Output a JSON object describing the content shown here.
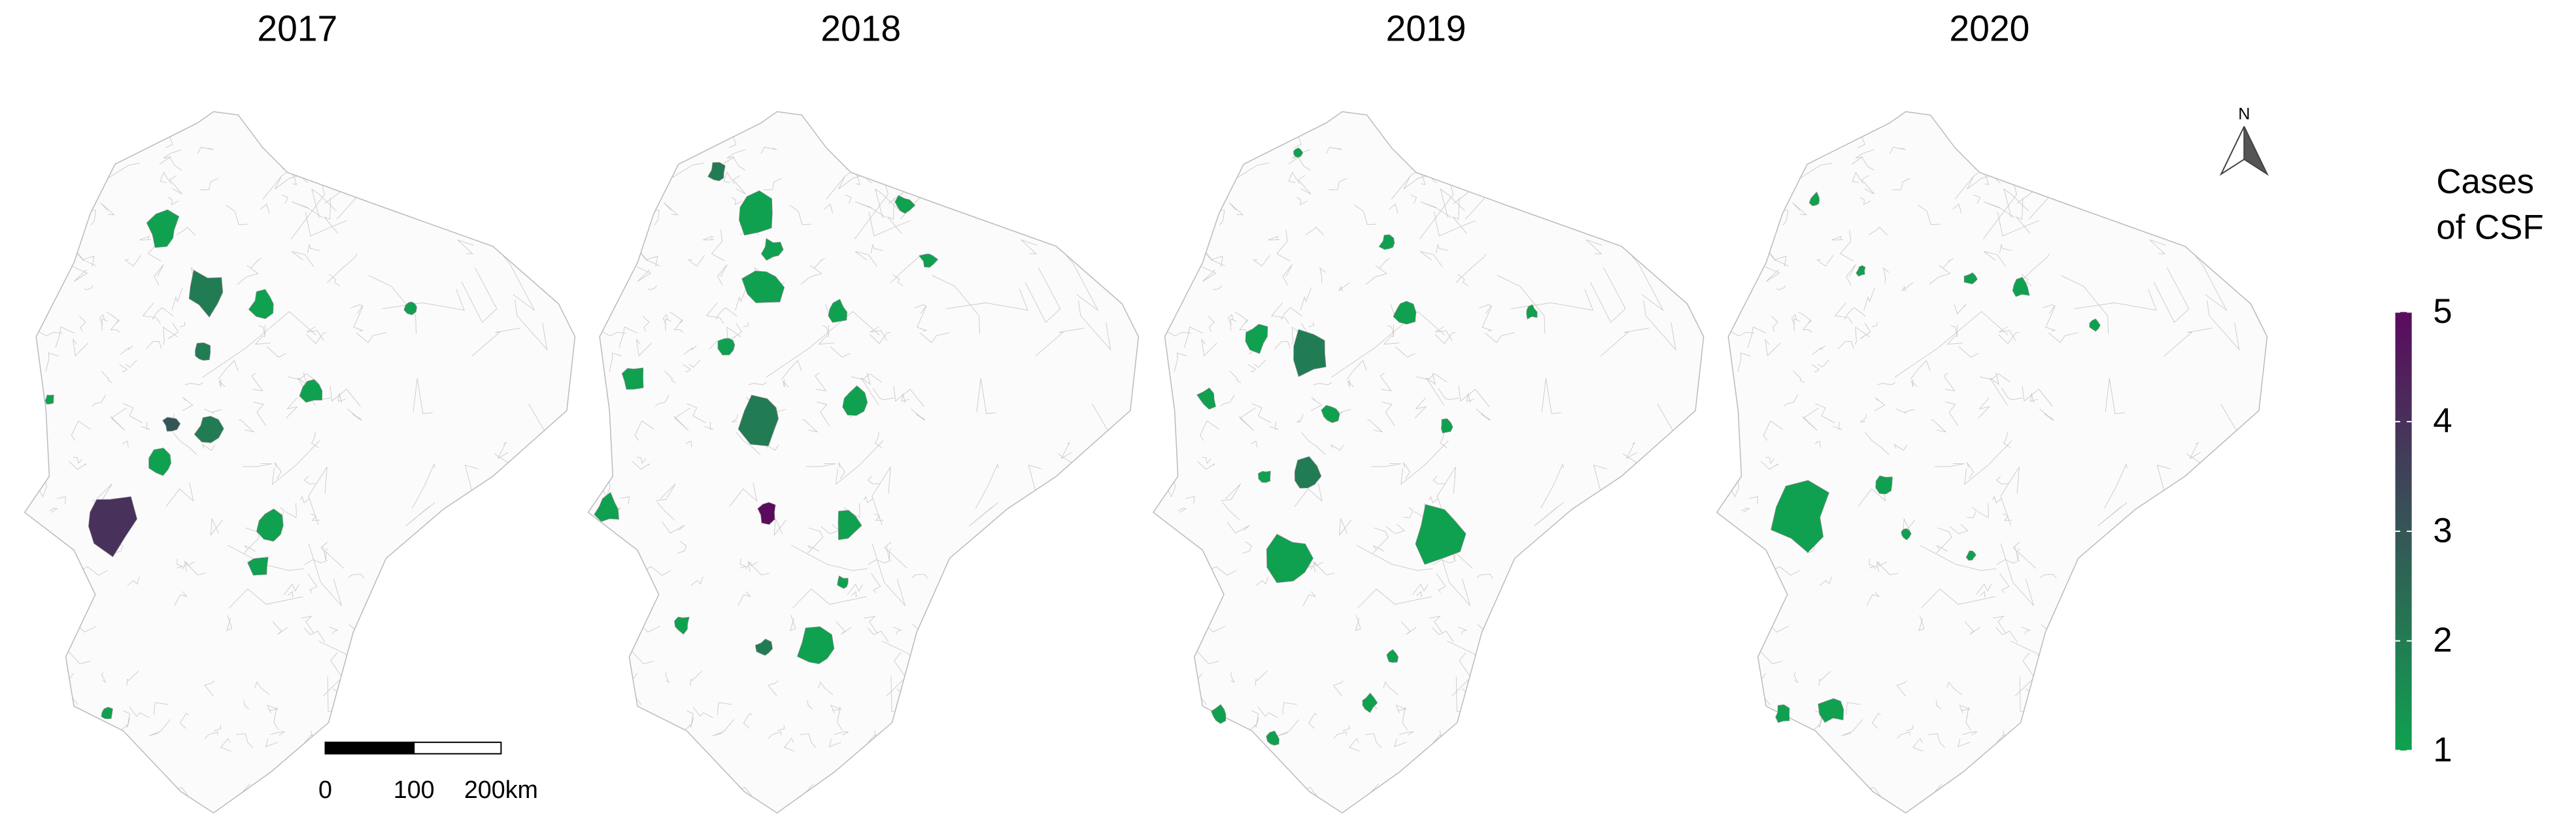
{
  "panels": [
    {
      "title": "2017",
      "cases": [
        1,
        2,
        1,
        2,
        1,
        1,
        2,
        3,
        4,
        1,
        1,
        1,
        1,
        1
      ]
    },
    {
      "title": "2018",
      "cases": [
        2,
        1,
        1,
        2,
        1,
        1,
        1,
        5,
        1,
        1,
        1,
        1,
        1,
        1,
        2,
        1,
        1,
        1
      ]
    },
    {
      "title": "2019",
      "cases": [
        2,
        1,
        1,
        1,
        2,
        1,
        1,
        1,
        1,
        1,
        1,
        1,
        1,
        1,
        1,
        1,
        1
      ]
    },
    {
      "title": "2020",
      "cases": [
        1,
        1,
        1,
        1,
        1,
        1,
        1,
        1,
        1,
        1,
        1
      ]
    }
  ],
  "legend": {
    "title_lines": [
      "Cases",
      "of CSF"
    ],
    "lim": [
      1,
      5
    ],
    "ticks": [
      1,
      2,
      3,
      4,
      5
    ],
    "low_color": "#0fa14f",
    "high_color": "#5b0b5e"
  },
  "scale_bar": {
    "labels": [
      "0",
      "100",
      "200km"
    ]
  },
  "north_arrow": "N"
}
